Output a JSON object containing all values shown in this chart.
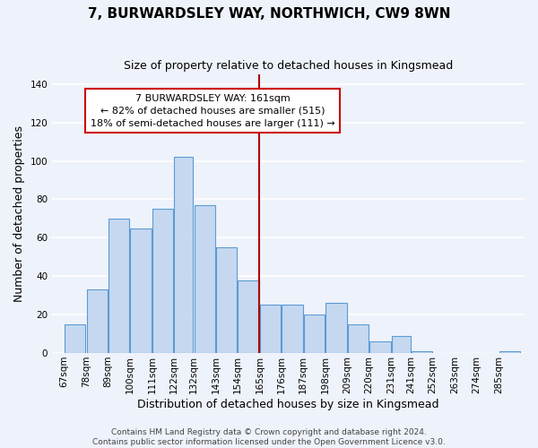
{
  "title": "7, BURWARDSLEY WAY, NORTHWICH, CW9 8WN",
  "subtitle": "Size of property relative to detached houses in Kingsmead",
  "xlabel": "Distribution of detached houses by size in Kingsmead",
  "ylabel": "Number of detached properties",
  "bar_labels": [
    "67sqm",
    "78sqm",
    "89sqm",
    "100sqm",
    "111sqm",
    "122sqm",
    "132sqm",
    "143sqm",
    "154sqm",
    "165sqm",
    "176sqm",
    "187sqm",
    "198sqm",
    "209sqm",
    "220sqm",
    "231sqm",
    "241sqm",
    "252sqm",
    "263sqm",
    "274sqm",
    "285sqm"
  ],
  "bar_values": [
    15,
    33,
    70,
    65,
    75,
    102,
    77,
    55,
    38,
    25,
    25,
    20,
    26,
    15,
    6,
    9,
    1,
    0,
    0,
    0,
    1
  ],
  "bar_color": "#c5d8f0",
  "bar_edge_color": "#5b9bd5",
  "vline_x": 165,
  "vline_color": "#aa0000",
  "annotation_title": "7 BURWARDSLEY WAY: 161sqm",
  "annotation_line1": "← 82% of detached houses are smaller (515)",
  "annotation_line2": "18% of semi-detached houses are larger (111) →",
  "annotation_box_color": "#ffffff",
  "annotation_box_edge": "#cc0000",
  "ylim": [
    0,
    145
  ],
  "yticks": [
    0,
    20,
    40,
    60,
    80,
    100,
    120,
    140
  ],
  "footer1": "Contains HM Land Registry data © Crown copyright and database right 2024.",
  "footer2": "Contains public sector information licensed under the Open Government Licence v3.0.",
  "bg_color": "#eef2fa",
  "grid_color": "#ffffff",
  "title_fontsize": 11,
  "subtitle_fontsize": 9,
  "axis_label_fontsize": 9,
  "tick_fontsize": 7.5,
  "footer_fontsize": 6.5,
  "annotation_fontsize": 8
}
